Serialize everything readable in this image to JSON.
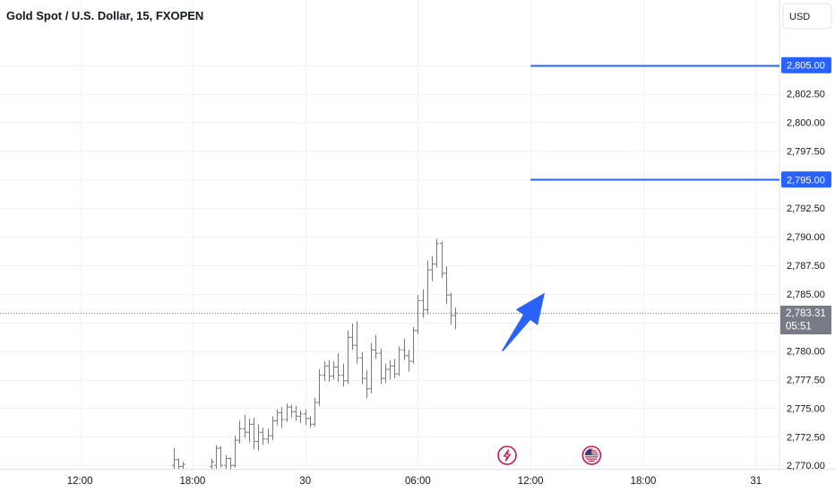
{
  "chart_data": {
    "type": "ohlc",
    "title": "Gold Spot / U.S. Dollar, 15, FXOPEN",
    "currency": "USD",
    "y_ticks": [
      "2,770.00",
      "2,772.50",
      "2,775.00",
      "2,777.50",
      "2,780.00",
      "2,782.50",
      "2,785.00",
      "2,787.50",
      "2,790.00",
      "2,792.50",
      "2,795.00",
      "2,797.50",
      "2,800.00",
      "2,802.50",
      "2,805.00"
    ],
    "y_tick_values": [
      2770,
      2772.5,
      2775,
      2777.5,
      2780,
      2782.5,
      2785,
      2787.5,
      2790,
      2792.5,
      2795,
      2797.5,
      2800,
      2802.5,
      2805
    ],
    "ylim": [
      2769.7,
      2810.7
    ],
    "x_ticks": [
      {
        "label": "12:00",
        "bar": -59
      },
      {
        "label": "18:00",
        "bar": -35
      },
      {
        "label": "30",
        "bar": -11
      },
      {
        "label": "06:00",
        "bar": 13
      },
      {
        "label": "12:00",
        "bar": 37
      },
      {
        "label": "18:00",
        "bar": 61
      },
      {
        "label": "31",
        "bar": 85
      }
    ],
    "xlim_bars": [
      -76,
      90
    ],
    "grid": true,
    "current_price": "2,783.31",
    "countdown": "05:51",
    "current_price_value": 2783.31,
    "price_lines": [
      {
        "label": "2,805.00",
        "value": 2805.0,
        "start_bar": 37,
        "color": "#2962ff"
      },
      {
        "label": "2,795.00",
        "value": 2795.0,
        "start_bar": 37,
        "color": "#2962ff"
      }
    ],
    "arrow": {
      "from_bar": 31,
      "from_price": 2780.0,
      "to_bar": 40,
      "to_price": 2785.1,
      "color": "#2962ff"
    },
    "event_icons": [
      {
        "name": "lightning-icon",
        "bar": 32,
        "color": "#c2185b"
      },
      {
        "name": "us-flag-icon",
        "bar": 50,
        "color": "#c2185b"
      }
    ],
    "bars": [
      {
        "i": -39,
        "o": 2770.0,
        "h": 2771.5,
        "l": 2769.7,
        "c": 2770.5
      },
      {
        "i": -38,
        "o": 2770.5,
        "h": 2770.6,
        "l": 2769.7,
        "c": 2769.9
      },
      {
        "i": -37,
        "o": 2769.9,
        "h": 2770.3,
        "l": 2769.7,
        "c": 2770.1
      },
      {
        "i": -31,
        "o": 2769.9,
        "h": 2770.6,
        "l": 2769.7,
        "c": 2770.3
      },
      {
        "i": -30,
        "o": 2770.0,
        "h": 2771.8,
        "l": 2769.7,
        "c": 2771.5
      },
      {
        "i": -29,
        "o": 2771.5,
        "h": 2771.7,
        "l": 2769.8,
        "c": 2770.0
      },
      {
        "i": -28,
        "o": 2770.0,
        "h": 2770.9,
        "l": 2769.7,
        "c": 2770.6
      },
      {
        "i": -27,
        "o": 2770.6,
        "h": 2770.7,
        "l": 2769.7,
        "c": 2770.0
      },
      {
        "i": -26,
        "o": 2770.0,
        "h": 2772.6,
        "l": 2769.8,
        "c": 2772.2
      },
      {
        "i": -25,
        "o": 2772.2,
        "h": 2773.9,
        "l": 2771.9,
        "c": 2773.2
      },
      {
        "i": -24,
        "o": 2773.2,
        "h": 2774.4,
        "l": 2772.4,
        "c": 2772.9
      },
      {
        "i": -23,
        "o": 2772.9,
        "h": 2774.1,
        "l": 2772.0,
        "c": 2773.6
      },
      {
        "i": -22,
        "o": 2773.6,
        "h": 2774.2,
        "l": 2771.4,
        "c": 2772.1
      },
      {
        "i": -21,
        "o": 2772.1,
        "h": 2773.6,
        "l": 2771.3,
        "c": 2772.9
      },
      {
        "i": -20,
        "o": 2772.9,
        "h": 2773.3,
        "l": 2771.8,
        "c": 2772.3
      },
      {
        "i": -19,
        "o": 2772.3,
        "h": 2773.2,
        "l": 2771.9,
        "c": 2772.6
      },
      {
        "i": -18,
        "o": 2772.6,
        "h": 2774.3,
        "l": 2772.2,
        "c": 2773.9
      },
      {
        "i": -17,
        "o": 2773.9,
        "h": 2774.9,
        "l": 2773.5,
        "c": 2774.6
      },
      {
        "i": -16,
        "o": 2774.6,
        "h": 2775.1,
        "l": 2773.3,
        "c": 2774.0
      },
      {
        "i": -15,
        "o": 2774.0,
        "h": 2775.4,
        "l": 2773.8,
        "c": 2775.1
      },
      {
        "i": -14,
        "o": 2775.1,
        "h": 2775.3,
        "l": 2774.2,
        "c": 2774.7
      },
      {
        "i": -13,
        "o": 2774.7,
        "h": 2775.2,
        "l": 2773.9,
        "c": 2774.3
      },
      {
        "i": -12,
        "o": 2774.3,
        "h": 2774.8,
        "l": 2773.7,
        "c": 2774.5
      },
      {
        "i": -11,
        "o": 2774.5,
        "h": 2774.9,
        "l": 2773.5,
        "c": 2774.1
      },
      {
        "i": -10,
        "o": 2774.1,
        "h": 2774.3,
        "l": 2773.3,
        "c": 2773.6
      },
      {
        "i": -9,
        "o": 2773.6,
        "h": 2775.9,
        "l": 2773.4,
        "c": 2775.5
      },
      {
        "i": -8,
        "o": 2775.5,
        "h": 2778.4,
        "l": 2775.2,
        "c": 2777.9
      },
      {
        "i": -7,
        "o": 2777.9,
        "h": 2779.1,
        "l": 2777.4,
        "c": 2778.7
      },
      {
        "i": -6,
        "o": 2778.7,
        "h": 2779.2,
        "l": 2777.3,
        "c": 2777.8
      },
      {
        "i": -5,
        "o": 2777.8,
        "h": 2779.1,
        "l": 2777.5,
        "c": 2778.6
      },
      {
        "i": -4,
        "o": 2778.6,
        "h": 2779.8,
        "l": 2777.3,
        "c": 2777.9
      },
      {
        "i": -3,
        "o": 2777.9,
        "h": 2778.9,
        "l": 2776.9,
        "c": 2777.4
      },
      {
        "i": -2,
        "o": 2777.4,
        "h": 2781.8,
        "l": 2777.1,
        "c": 2781.2
      },
      {
        "i": -1,
        "o": 2781.2,
        "h": 2782.4,
        "l": 2780.1,
        "c": 2780.5
      },
      {
        "i": 0,
        "o": 2780.5,
        "h": 2782.6,
        "l": 2778.9,
        "c": 2779.4
      },
      {
        "i": 1,
        "o": 2779.4,
        "h": 2779.9,
        "l": 2777.1,
        "c": 2777.6
      },
      {
        "i": 2,
        "o": 2777.6,
        "h": 2778.3,
        "l": 2775.9,
        "c": 2776.7
      },
      {
        "i": 3,
        "o": 2776.7,
        "h": 2780.7,
        "l": 2776.3,
        "c": 2780.1
      },
      {
        "i": 4,
        "o": 2780.1,
        "h": 2781.4,
        "l": 2779.3,
        "c": 2779.8
      },
      {
        "i": 5,
        "o": 2779.8,
        "h": 2780.2,
        "l": 2777.1,
        "c": 2777.6
      },
      {
        "i": 6,
        "o": 2777.6,
        "h": 2778.9,
        "l": 2777.2,
        "c": 2778.4
      },
      {
        "i": 7,
        "o": 2778.4,
        "h": 2779.2,
        "l": 2777.5,
        "c": 2778.7
      },
      {
        "i": 8,
        "o": 2778.7,
        "h": 2779.3,
        "l": 2777.6,
        "c": 2778.0
      },
      {
        "i": 9,
        "o": 2778.0,
        "h": 2780.4,
        "l": 2777.8,
        "c": 2780.1
      },
      {
        "i": 10,
        "o": 2780.1,
        "h": 2781.1,
        "l": 2779.2,
        "c": 2779.6
      },
      {
        "i": 11,
        "o": 2779.6,
        "h": 2780.1,
        "l": 2778.2,
        "c": 2779.1
      },
      {
        "i": 12,
        "o": 2779.1,
        "h": 2782.1,
        "l": 2778.9,
        "c": 2781.8
      },
      {
        "i": 13,
        "o": 2781.8,
        "h": 2784.9,
        "l": 2781.5,
        "c": 2784.4
      },
      {
        "i": 14,
        "o": 2784.4,
        "h": 2785.4,
        "l": 2782.9,
        "c": 2783.6
      },
      {
        "i": 15,
        "o": 2783.6,
        "h": 2787.9,
        "l": 2783.2,
        "c": 2787.1
      },
      {
        "i": 16,
        "o": 2787.1,
        "h": 2788.3,
        "l": 2786.1,
        "c": 2787.6
      },
      {
        "i": 17,
        "o": 2787.6,
        "h": 2789.8,
        "l": 2787.3,
        "c": 2789.4
      },
      {
        "i": 18,
        "o": 2789.4,
        "h": 2789.6,
        "l": 2786.4,
        "c": 2786.8
      },
      {
        "i": 19,
        "o": 2786.8,
        "h": 2787.4,
        "l": 2784.1,
        "c": 2784.9
      },
      {
        "i": 20,
        "o": 2784.9,
        "h": 2785.1,
        "l": 2782.3,
        "c": 2783.1
      },
      {
        "i": 21,
        "o": 2783.1,
        "h": 2783.8,
        "l": 2781.9,
        "c": 2783.31
      }
    ]
  }
}
